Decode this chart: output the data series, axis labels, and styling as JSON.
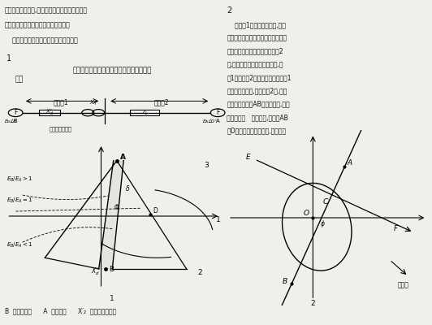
{
  "bg_color": "#f0f0eb",
  "text_color": "#111111",
  "fig_width": 5.32,
  "fig_height": 4.0,
  "top_text_left": [
    "厂站側的厂用系统,危及机组安全运行。对大型机",
    "组应该配置功能比较齐全的失步保护。",
    "    这里介绍一种三阻抗元件的失步保护。"
  ],
  "section1_title": "发电机与系统发生失步的振荡中心轨迹图如",
  "section1_subtitle": "下：",
  "circuit_zone1": "动作区1",
  "circuit_zone2": "动作区2",
  "circuit_install": "失步保护安装处",
  "section2_text": [
    "    根据图1的阻抗运行轨迹,可以",
    "抗元件和两根直线型阻抗元件构成三",
    "发电机的失步。阻抗元件图如图2",
    "件,把阻抗平面分为两个动作区,即",
    "区1、动作区2。当振荡中心落于区1",
    "位于发变组内部,当落于区2时,振荡",
    "变以外的系统。AB为阻挡元件,把阻",
    "右两部分。   为阻抗角,失步线AB",
    "点O代表失步保护安装处,即机端。"
  ]
}
